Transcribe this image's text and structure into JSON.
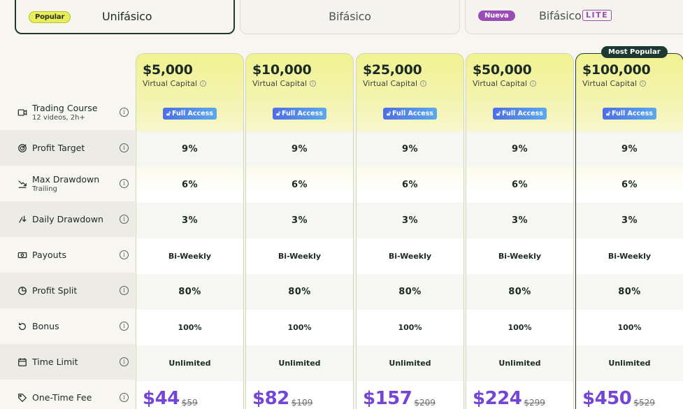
{
  "tabs": [
    {
      "badge": "Popular",
      "label": "Unifásico",
      "active": true
    },
    {
      "label": "Bifásico",
      "active": false
    },
    {
      "badge": "Nueva",
      "label": "Bifásico",
      "suffix": "LITE",
      "active": false
    }
  ],
  "most_popular_label": "Most Popular",
  "features": [
    {
      "icon": "video-icon",
      "title": "Trading Course",
      "sub": "12 videos, 2h+"
    },
    {
      "icon": "target-icon",
      "title": "Profit Target",
      "sub": ""
    },
    {
      "icon": "trend-down-icon",
      "title": "Max Drawdown",
      "sub": "Trailing"
    },
    {
      "icon": "arrow-down-icon",
      "title": "Daily Drawdown",
      "sub": ""
    },
    {
      "icon": "payout-icon",
      "title": "Payouts",
      "sub": ""
    },
    {
      "icon": "pie-icon",
      "title": "Profit Split",
      "sub": ""
    },
    {
      "icon": "rotate-icon",
      "title": "Bonus",
      "sub": ""
    },
    {
      "icon": "calendar-icon",
      "title": "Time Limit",
      "sub": ""
    },
    {
      "icon": "tag-icon",
      "title": "One-Time Fee",
      "sub": ""
    }
  ],
  "info_glyph": "i",
  "capital_label": "Virtual Capital",
  "full_access_label": "Full Access",
  "plans": [
    {
      "price": "$5,000",
      "target": "9%",
      "max_dd": "6%",
      "daily_dd": "3%",
      "payouts": "Bi-Weekly",
      "split": "80%",
      "bonus": "100%",
      "time": "Unlimited",
      "fee": "$44",
      "fee_old": "$59"
    },
    {
      "price": "$10,000",
      "target": "9%",
      "max_dd": "6%",
      "daily_dd": "3%",
      "payouts": "Bi-Weekly",
      "split": "80%",
      "bonus": "100%",
      "time": "Unlimited",
      "fee": "$82",
      "fee_old": "$109"
    },
    {
      "price": "$25,000",
      "target": "9%",
      "max_dd": "6%",
      "daily_dd": "3%",
      "payouts": "Bi-Weekly",
      "split": "80%",
      "bonus": "100%",
      "time": "Unlimited",
      "fee": "$157",
      "fee_old": "$209"
    },
    {
      "price": "$50,000",
      "target": "9%",
      "max_dd": "6%",
      "daily_dd": "3%",
      "payouts": "Bi-Weekly",
      "split": "80%",
      "bonus": "100%",
      "time": "Unlimited",
      "fee": "$224",
      "fee_old": "$299"
    },
    {
      "price": "$100,000",
      "target": "9%",
      "max_dd": "6%",
      "daily_dd": "3%",
      "payouts": "Bi-Weekly",
      "split": "80%",
      "bonus": "100%",
      "time": "Unlimited",
      "fee": "$450",
      "fee_old": "$529",
      "featured": true
    }
  ],
  "colors": {
    "accent_purple": "#7446d6",
    "badge_yellow": "#e7ee5a",
    "badge_purple": "#9a4bb5",
    "dark_green": "#1e3a30"
  }
}
